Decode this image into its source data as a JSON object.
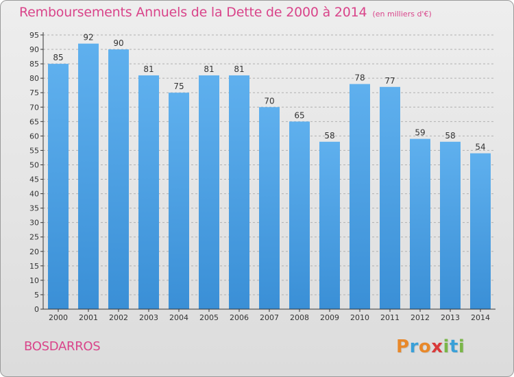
{
  "chart_data": {
    "type": "bar",
    "title": "Remboursements Annuels de la Dette de 2000 à 2014",
    "subtitle": "(en milliers d'€)",
    "categories": [
      "2000",
      "2001",
      "2002",
      "2003",
      "2004",
      "2005",
      "2006",
      "2007",
      "2008",
      "2009",
      "2010",
      "2011",
      "2012",
      "2013",
      "2014"
    ],
    "values": [
      85,
      92,
      90,
      81,
      75,
      81,
      81,
      70,
      65,
      58,
      78,
      77,
      59,
      58,
      54
    ],
    "ylim": [
      0,
      95
    ],
    "yticks": [
      0,
      5,
      10,
      15,
      20,
      25,
      30,
      35,
      40,
      45,
      50,
      55,
      60,
      65,
      70,
      75,
      80,
      85,
      90,
      95
    ],
    "grid": "horizontal dashed",
    "bar_color": "#3a8fd6"
  },
  "footer": {
    "town": "BOSDARROS",
    "logo_letters": [
      "P",
      "r",
      "o",
      "x",
      "i",
      "t",
      "i"
    ],
    "logo_colors": [
      "#e8882a",
      "#3aa0d8",
      "#e8882a",
      "#d93a3a",
      "#7ab648",
      "#3aa0d8",
      "#7ab648"
    ]
  },
  "colors": {
    "accent": "#d9448a",
    "axis": "#333333",
    "grid": "#b0b0b0"
  }
}
